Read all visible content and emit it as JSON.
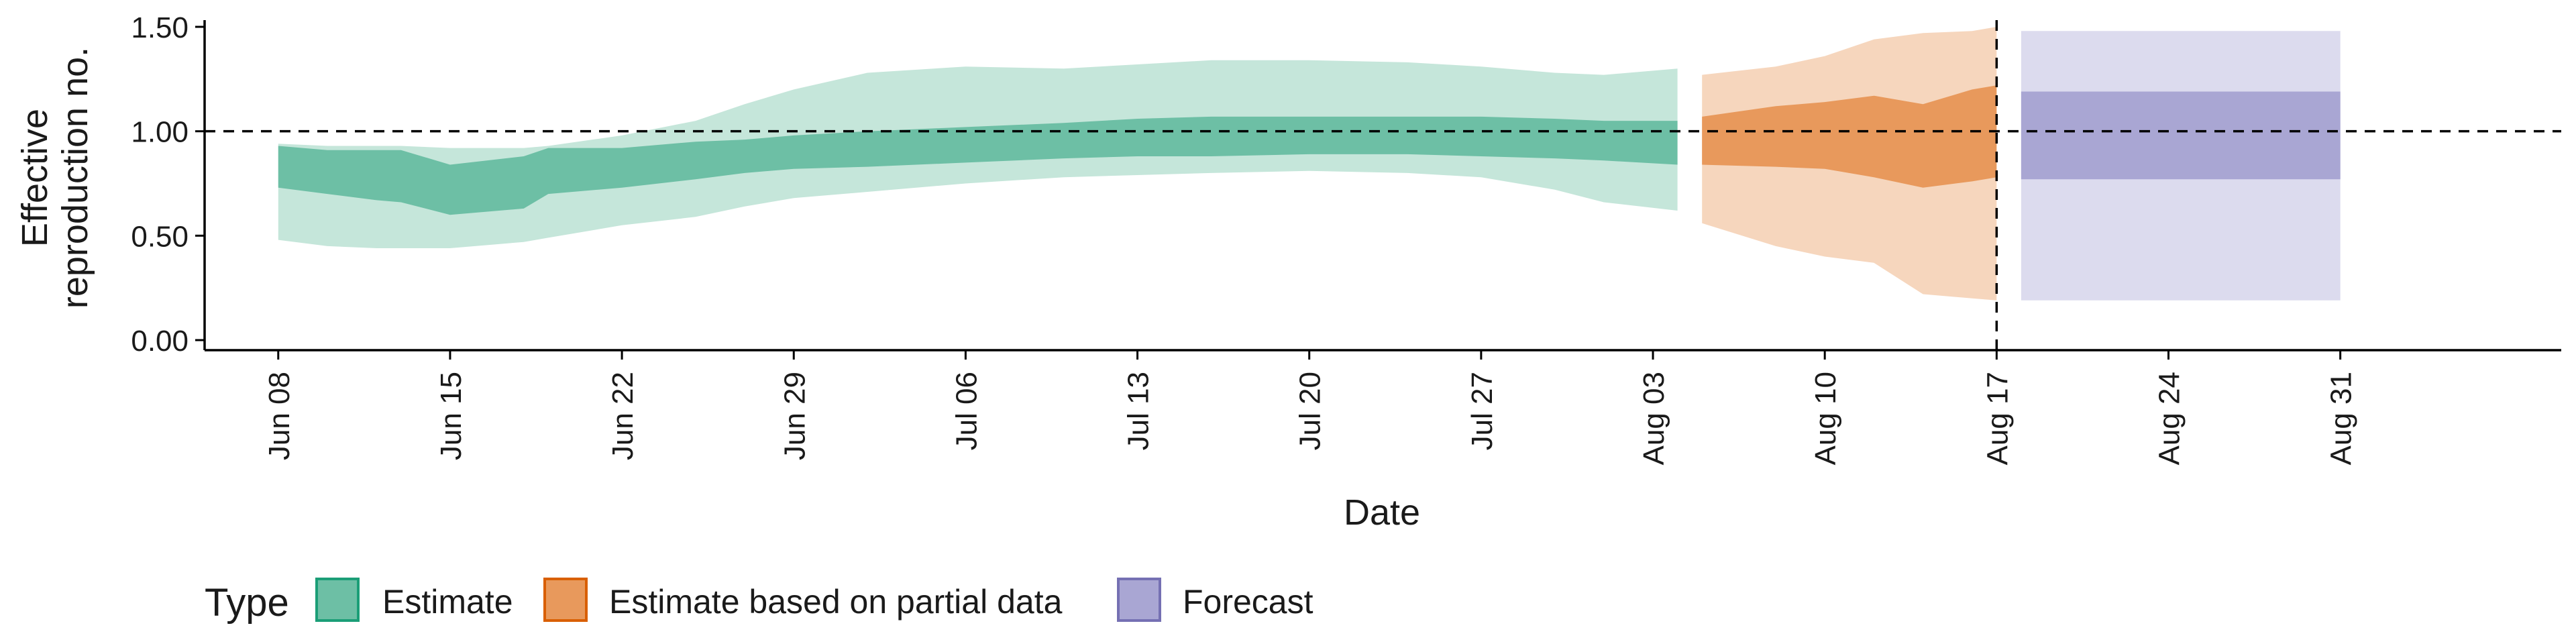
{
  "chart_data": {
    "type": "area",
    "title": "",
    "xlabel": "Date",
    "ylabel": [
      "Effective",
      "reproduction no."
    ],
    "ylim": [
      0,
      1.5
    ],
    "yticks": [
      "0.00",
      "0.50",
      "1.00",
      "1.50"
    ],
    "ytick_values": [
      0,
      0.5,
      1.0,
      1.5
    ],
    "xlim": [
      "2020-06-05",
      "2020-09-09"
    ],
    "xticks": [
      "Jun 08",
      "Jun 15",
      "Jun 22",
      "Jun 29",
      "Jul 06",
      "Jul 13",
      "Jul 20",
      "Jul 27",
      "Aug 03",
      "Aug 10",
      "Aug 17",
      "Aug 24",
      "Aug 31"
    ],
    "xtick_dates": [
      "2020-06-08",
      "2020-06-15",
      "2020-06-22",
      "2020-06-29",
      "2020-07-06",
      "2020-07-13",
      "2020-07-20",
      "2020-07-27",
      "2020-08-03",
      "2020-08-10",
      "2020-08-17",
      "2020-08-24",
      "2020-08-31"
    ],
    "reference_line_y": 1.0,
    "reference_line_x": "2020-08-17",
    "legend": {
      "title": "Type",
      "position": "bottom-left"
    },
    "series": [
      {
        "name": "Estimate",
        "color_inner": "#6dbfa5",
        "color_outer": "#c5e6da",
        "points": [
          {
            "x": "2020-06-08",
            "lo90": 0.48,
            "lo50": 0.73,
            "hi50": 0.93,
            "hi90": 0.94
          },
          {
            "x": "2020-06-10",
            "lo90": 0.45,
            "lo50": 0.7,
            "hi50": 0.91,
            "hi90": 0.93
          },
          {
            "x": "2020-06-12",
            "lo90": 0.44,
            "lo50": 0.67,
            "hi50": 0.91,
            "hi90": 0.93
          },
          {
            "x": "2020-06-13",
            "lo90": 0.44,
            "lo50": 0.66,
            "hi50": 0.91,
            "hi90": 0.93
          },
          {
            "x": "2020-06-15",
            "lo90": 0.44,
            "lo50": 0.6,
            "hi50": 0.84,
            "hi90": 0.92
          },
          {
            "x": "2020-06-18",
            "lo90": 0.47,
            "lo50": 0.63,
            "hi50": 0.88,
            "hi90": 0.92
          },
          {
            "x": "2020-06-19",
            "lo90": 0.49,
            "lo50": 0.7,
            "hi50": 0.92,
            "hi90": 0.93
          },
          {
            "x": "2020-06-22",
            "lo90": 0.55,
            "lo50": 0.73,
            "hi50": 0.92,
            "hi90": 0.98
          },
          {
            "x": "2020-06-25",
            "lo90": 0.59,
            "lo50": 0.77,
            "hi50": 0.95,
            "hi90": 1.05
          },
          {
            "x": "2020-06-27",
            "lo90": 0.64,
            "lo50": 0.8,
            "hi50": 0.96,
            "hi90": 1.13
          },
          {
            "x": "2020-06-29",
            "lo90": 0.68,
            "lo50": 0.82,
            "hi50": 0.98,
            "hi90": 1.2
          },
          {
            "x": "2020-07-02",
            "lo90": 0.71,
            "lo50": 0.83,
            "hi50": 1.0,
            "hi90": 1.28
          },
          {
            "x": "2020-07-06",
            "lo90": 0.75,
            "lo50": 0.85,
            "hi50": 1.02,
            "hi90": 1.31
          },
          {
            "x": "2020-07-10",
            "lo90": 0.78,
            "lo50": 0.87,
            "hi50": 1.04,
            "hi90": 1.3
          },
          {
            "x": "2020-07-13",
            "lo90": 0.79,
            "lo50": 0.88,
            "hi50": 1.06,
            "hi90": 1.32
          },
          {
            "x": "2020-07-16",
            "lo90": 0.8,
            "lo50": 0.88,
            "hi50": 1.07,
            "hi90": 1.34
          },
          {
            "x": "2020-07-20",
            "lo90": 0.81,
            "lo50": 0.89,
            "hi50": 1.07,
            "hi90": 1.34
          },
          {
            "x": "2020-07-24",
            "lo90": 0.8,
            "lo50": 0.89,
            "hi50": 1.07,
            "hi90": 1.33
          },
          {
            "x": "2020-07-27",
            "lo90": 0.78,
            "lo50": 0.88,
            "hi50": 1.07,
            "hi90": 1.31
          },
          {
            "x": "2020-07-30",
            "lo90": 0.72,
            "lo50": 0.87,
            "hi50": 1.06,
            "hi90": 1.28
          },
          {
            "x": "2020-08-01",
            "lo90": 0.66,
            "lo50": 0.86,
            "hi50": 1.05,
            "hi90": 1.27
          },
          {
            "x": "2020-08-04",
            "lo90": 0.62,
            "lo50": 0.84,
            "hi50": 1.05,
            "hi90": 1.3
          }
        ]
      },
      {
        "name": "Estimate based on partial data",
        "color_inner": "#e8995c",
        "color_outer": "#f6d6bd",
        "points": [
          {
            "x": "2020-08-05",
            "lo90": 0.56,
            "lo50": 0.84,
            "hi50": 1.07,
            "hi90": 1.27
          },
          {
            "x": "2020-08-08",
            "lo90": 0.45,
            "lo50": 0.83,
            "hi50": 1.12,
            "hi90": 1.31
          },
          {
            "x": "2020-08-10",
            "lo90": 0.4,
            "lo50": 0.82,
            "hi50": 1.14,
            "hi90": 1.36
          },
          {
            "x": "2020-08-12",
            "lo90": 0.37,
            "lo50": 0.78,
            "hi50": 1.17,
            "hi90": 1.44
          },
          {
            "x": "2020-08-14",
            "lo90": 0.22,
            "lo50": 0.73,
            "hi50": 1.13,
            "hi90": 1.47
          },
          {
            "x": "2020-08-16",
            "lo90": 0.2,
            "lo50": 0.76,
            "hi50": 1.2,
            "hi90": 1.48
          },
          {
            "x": "2020-08-17",
            "lo90": 0.19,
            "lo50": 0.78,
            "hi50": 1.22,
            "hi90": 1.5
          }
        ]
      },
      {
        "name": "Forecast",
        "color_inner": "#a9a6d3",
        "color_outer": "#dcdbee",
        "points": [
          {
            "x": "2020-08-18",
            "lo90": 0.19,
            "lo50": 0.77,
            "hi50": 1.19,
            "hi90": 1.48
          },
          {
            "x": "2020-08-31",
            "lo90": 0.19,
            "lo50": 0.77,
            "hi50": 1.19,
            "hi90": 1.48
          }
        ]
      }
    ]
  },
  "legend_keys": {
    "estimate_border": "#1b9e77",
    "partial_border": "#d95f02",
    "forecast_border": "#7570b3"
  }
}
